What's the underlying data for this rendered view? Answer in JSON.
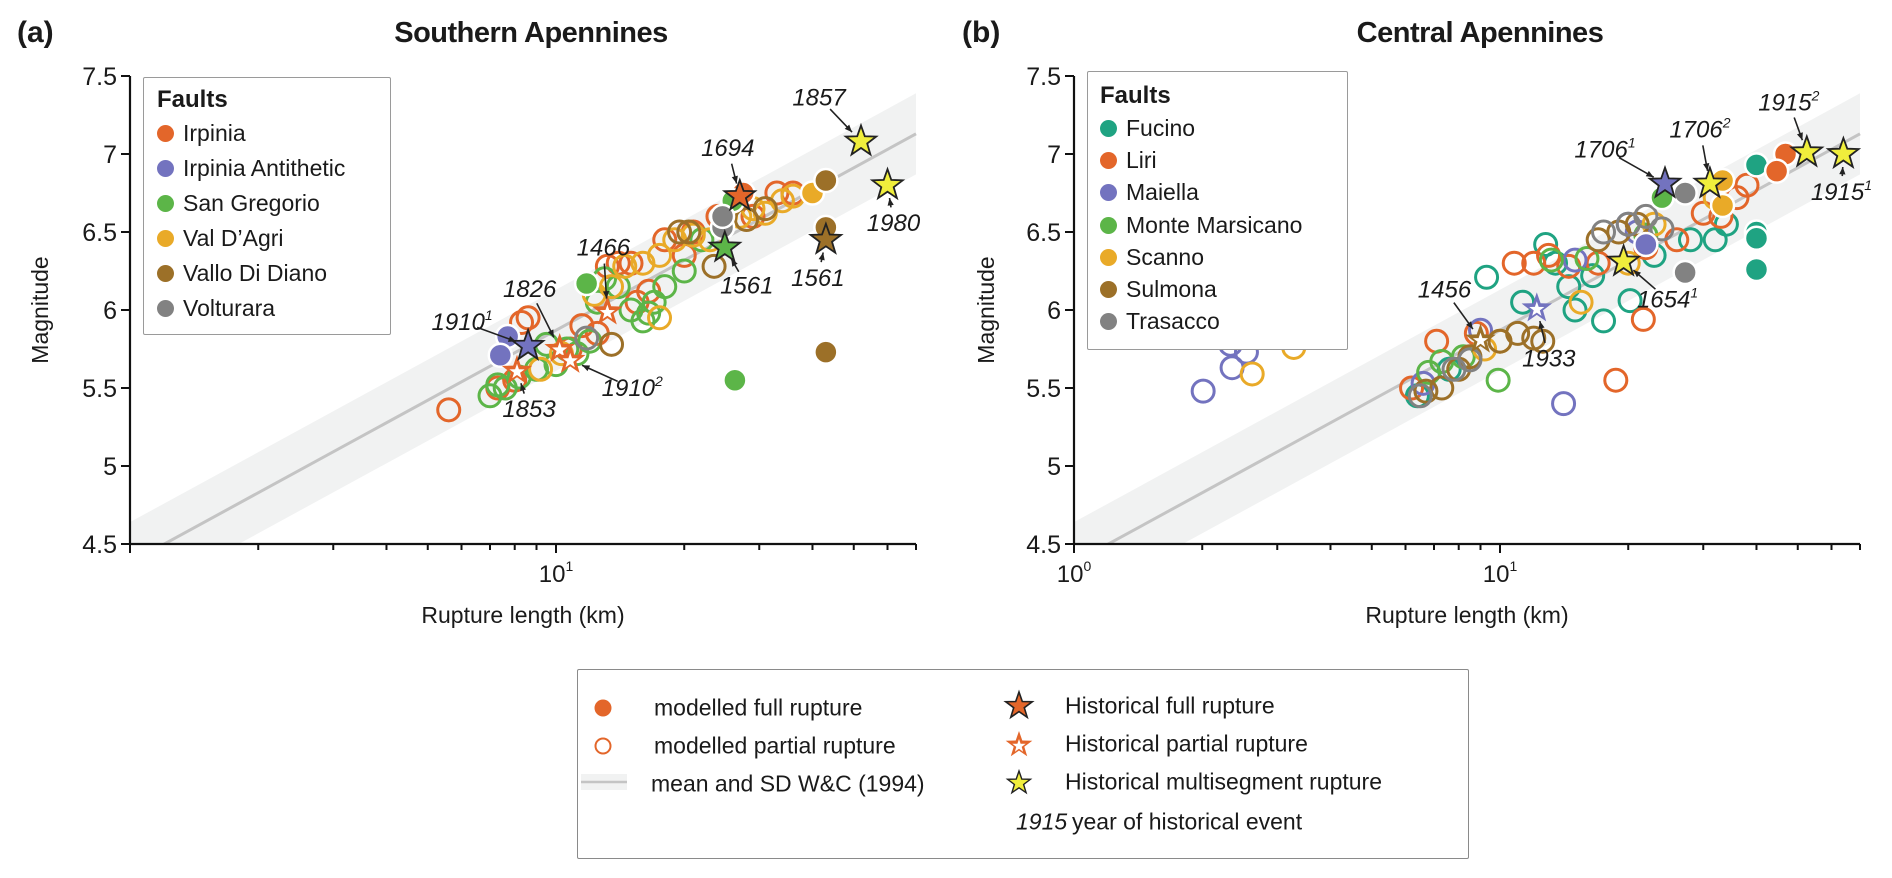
{
  "chart_data": [
    {
      "panel": "(a)",
      "type": "scatter",
      "title": "Southern Apennines",
      "xlabel": "Rupture length (km)",
      "ylabel": "Magnitude",
      "xscale": "log",
      "xlim": [
        1,
        70
      ],
      "ylim": [
        4.5,
        7.5
      ],
      "yticks": [
        "4.5",
        "5",
        "5.5",
        "6",
        "6.5",
        "7",
        "7.5"
      ],
      "xtick_labels": [
        {
          "base": "10",
          "exp": "1",
          "value": 10
        }
      ],
      "legend_title": "Faults",
      "legend_placement": "top-left",
      "reference": {
        "intercept": 4.38,
        "slope": 1.49,
        "sd": 0.26
      },
      "series": [
        {
          "name": "Irpinia",
          "color": "#e3662a",
          "partial": [
            [
              5.6,
              5.36
            ],
            [
              8.3,
              5.92
            ],
            [
              8.6,
              5.95
            ],
            [
              7.3,
              5.5
            ],
            [
              8.0,
              5.55
            ],
            [
              10.8,
              5.75
            ],
            [
              11.5,
              5.9
            ],
            [
              12.5,
              5.85
            ],
            [
              13.2,
              6.28
            ],
            [
              14,
              6.3
            ],
            [
              15,
              6.3
            ],
            [
              15.5,
              6.05
            ],
            [
              16.5,
              6.12
            ],
            [
              18,
              6.45
            ],
            [
              20,
              6.35
            ],
            [
              21,
              6.5
            ],
            [
              24,
              6.6
            ],
            [
              29,
              6.6
            ],
            [
              33,
              6.75
            ],
            [
              36,
              6.75
            ]
          ],
          "full": [
            [
              27.5,
              6.75
            ]
          ]
        },
        {
          "name": "Irpinia Antithetic",
          "color": "#7373bf",
          "partial": [],
          "full": [
            [
              7.7,
              5.83
            ],
            [
              7.4,
              5.71
            ]
          ]
        },
        {
          "name": "San Gregorio",
          "color": "#5cb548",
          "partial": [
            [
              7.0,
              5.45
            ],
            [
              7.3,
              5.52
            ],
            [
              7.6,
              5.5
            ],
            [
              8.2,
              5.57
            ],
            [
              9,
              5.62
            ],
            [
              9.5,
              5.78
            ],
            [
              10,
              5.65
            ],
            [
              10.6,
              5.75
            ],
            [
              11.2,
              5.72
            ],
            [
              12,
              5.8
            ],
            [
              12.5,
              6.05
            ],
            [
              13,
              6.2
            ],
            [
              14,
              6.15
            ],
            [
              15,
              6.0
            ],
            [
              16,
              5.93
            ],
            [
              16.5,
              5.98
            ],
            [
              17,
              6.05
            ],
            [
              18,
              6.15
            ],
            [
              20,
              6.25
            ],
            [
              22,
              6.45
            ]
          ],
          "full": [
            [
              11.8,
              6.17
            ],
            [
              26,
              6.7
            ],
            [
              26.3,
              5.55
            ]
          ]
        },
        {
          "name": "Val D’Agri",
          "color": "#e9aa28",
          "partial": [
            [
              9.2,
              5.62
            ],
            [
              10.3,
              5.72
            ],
            [
              12.3,
              6.1
            ],
            [
              13.5,
              6.15
            ],
            [
              14.5,
              6.28
            ],
            [
              16,
              6.3
            ],
            [
              17.5,
              6.35
            ],
            [
              17.5,
              5.95
            ],
            [
              19,
              6.45
            ],
            [
              21,
              6.48
            ],
            [
              23,
              6.45
            ],
            [
              25,
              6.6
            ],
            [
              27,
              6.6
            ],
            [
              29,
              6.65
            ],
            [
              31,
              6.62
            ],
            [
              34,
              6.7
            ],
            [
              36,
              6.73
            ]
          ],
          "full": [
            [
              40,
              6.75
            ]
          ]
        },
        {
          "name": "Vallo Di Diano",
          "color": "#9c7028",
          "partial": [
            [
              13.5,
              5.78
            ],
            [
              19.5,
              6.5
            ],
            [
              20.5,
              6.5
            ],
            [
              23.5,
              6.28
            ],
            [
              28,
              6.58
            ],
            [
              31,
              6.65
            ]
          ],
          "full": [
            [
              43,
              6.83
            ],
            [
              43,
              6.53
            ],
            [
              43,
              5.73
            ]
          ]
        },
        {
          "name": "Volturara",
          "color": "#828282",
          "partial": [
            [
              11.8,
              5.82
            ]
          ],
          "full": [
            [
              24.6,
              6.53
            ],
            [
              24.6,
              6.6
            ]
          ]
        }
      ],
      "historical": [
        {
          "year": "1694",
          "sup": "",
          "kind": "full",
          "fault": "Irpinia",
          "x": 27,
          "y": 6.73
        },
        {
          "year": "1561",
          "sup": "",
          "kind": "full",
          "fault": "San Gregorio",
          "x": 24.9,
          "y": 6.4
        },
        {
          "year": "1561",
          "sup": "",
          "kind": "full",
          "fault": "Vallo Di Diano",
          "x": 43,
          "y": 6.45
        },
        {
          "year": "1857",
          "sup": "",
          "kind": "multisegment",
          "fault": "",
          "x": 52,
          "y": 7.08
        },
        {
          "year": "1980",
          "sup": "",
          "kind": "multisegment",
          "fault": "",
          "x": 60,
          "y": 6.8
        },
        {
          "year": "1466",
          "sup": "",
          "kind": "partial",
          "fault": "Irpinia",
          "x": 13.2,
          "y": 5.99
        },
        {
          "year": "1826",
          "sup": "",
          "kind": "partial",
          "fault": "Irpinia",
          "x": 10.2,
          "y": 5.75
        },
        {
          "year": "1853",
          "sup": "",
          "kind": "partial",
          "fault": "Irpinia",
          "x": 8.1,
          "y": 5.61
        },
        {
          "year": "1910",
          "sup": "1",
          "kind": "full",
          "fault": "Irpinia Antithetic",
          "x": 8.6,
          "y": 5.77
        },
        {
          "year": "1910",
          "sup": "2",
          "kind": "partial",
          "fault": "Irpinia",
          "x": 10.8,
          "y": 5.68
        }
      ]
    },
    {
      "panel": "(b)",
      "type": "scatter",
      "title": "Central Apennines",
      "xlabel": "Rupture length (km)",
      "ylabel": "Magnitude",
      "xscale": "log",
      "xlim": [
        1,
        70
      ],
      "ylim": [
        4.5,
        7.5
      ],
      "yticks": [
        "4.5",
        "5",
        "5.5",
        "6",
        "6.5",
        "7",
        "7.5"
      ],
      "xtick_labels": [
        {
          "base": "10",
          "exp": "0",
          "value": 1
        },
        {
          "base": "10",
          "exp": "1",
          "value": 10
        }
      ],
      "legend_title": "Faults",
      "legend_placement": "top-left",
      "reference": {
        "intercept": 4.38,
        "slope": 1.49,
        "sd": 0.26
      },
      "series": [
        {
          "name": "Fucino",
          "color": "#1fa382",
          "partial": [
            [
              6.4,
              5.45
            ],
            [
              7.6,
              5.62
            ],
            [
              9.3,
              6.21
            ],
            [
              11.3,
              6.05
            ],
            [
              12.8,
              6.42
            ],
            [
              13.5,
              6.3
            ],
            [
              14.5,
              6.15
            ],
            [
              15,
              6.0
            ],
            [
              16.5,
              6.22
            ],
            [
              17.5,
              5.93
            ],
            [
              20.2,
              6.06
            ],
            [
              23,
              6.35
            ],
            [
              28,
              6.45
            ],
            [
              32,
              6.45
            ],
            [
              34,
              6.55
            ]
          ],
          "full": [
            [
              40,
              6.93
            ],
            [
              40,
              6.5
            ],
            [
              40,
              6.46
            ],
            [
              40,
              6.26
            ]
          ]
        },
        {
          "name": "Liri",
          "color": "#e3662a",
          "partial": [
            [
              6.2,
              5.5
            ],
            [
              7.1,
              5.8
            ],
            [
              8.8,
              5.85
            ],
            [
              10.8,
              6.3
            ],
            [
              12,
              6.3
            ],
            [
              13,
              6.35
            ],
            [
              14.5,
              6.28
            ],
            [
              17,
              6.3
            ],
            [
              18.7,
              5.55
            ],
            [
              21.7,
              5.94
            ],
            [
              22,
              6.4
            ],
            [
              26,
              6.45
            ],
            [
              30,
              6.62
            ],
            [
              33,
              6.6
            ],
            [
              36,
              6.72
            ],
            [
              38,
              6.8
            ]
          ],
          "full": [
            [
              46.8,
              7.0
            ],
            [
              44.6,
              6.89
            ]
          ]
        },
        {
          "name": "Maiella",
          "color": "#7373bf",
          "partial": [
            [
              2.01,
              5.48
            ],
            [
              2.33,
              5.78
            ],
            [
              2.35,
              5.63
            ],
            [
              2.54,
              5.73
            ],
            [
              6.6,
              5.53
            ],
            [
              9.0,
              5.87
            ],
            [
              14.1,
              5.4
            ],
            [
              15,
              6.32
            ],
            [
              20,
              6.55
            ],
            [
              21,
              6.5
            ]
          ],
          "full": [
            [
              22,
              6.42
            ]
          ]
        },
        {
          "name": "Monte Marsicano",
          "color": "#5cb548",
          "partial": [
            [
              6.8,
              5.6
            ],
            [
              7.3,
              5.67
            ],
            [
              8.2,
              5.7
            ],
            [
              9.9,
              5.55
            ],
            [
              13.2,
              6.32
            ],
            [
              16,
              6.33
            ],
            [
              22,
              6.48
            ]
          ],
          "full": [
            [
              24,
              6.72
            ]
          ]
        },
        {
          "name": "Scanno",
          "color": "#e9aa28",
          "partial": [
            [
              2.62,
              5.59
            ],
            [
              3.28,
              5.76
            ],
            [
              9.2,
              5.75
            ],
            [
              10,
              5.8
            ],
            [
              15.5,
              6.05
            ],
            [
              20,
              6.3
            ],
            [
              23,
              6.55
            ],
            [
              32,
              6.72
            ]
          ],
          "full": [
            [
              33.3,
              6.83
            ],
            [
              33.3,
              6.67
            ]
          ]
        },
        {
          "name": "Sulmona",
          "color": "#9c7028",
          "partial": [
            [
              6.7,
              5.48
            ],
            [
              7.3,
              5.5
            ],
            [
              8.0,
              5.62
            ],
            [
              8.5,
              5.7
            ],
            [
              10,
              5.8
            ],
            [
              11,
              5.85
            ],
            [
              12,
              5.82
            ],
            [
              12.6,
              5.8
            ],
            [
              17,
              6.45
            ],
            [
              19,
              6.5
            ],
            [
              21,
              6.55
            ]
          ],
          "full": []
        },
        {
          "name": "Trasacco",
          "color": "#828282",
          "partial": [
            [
              6.5,
              5.45
            ],
            [
              7.8,
              5.62
            ],
            [
              8.5,
              5.68
            ],
            [
              17.5,
              6.5
            ],
            [
              20,
              6.55
            ],
            [
              22,
              6.6
            ],
            [
              24,
              6.52
            ]
          ],
          "full": [
            [
              27.2,
              6.75
            ],
            [
              27.2,
              6.24
            ]
          ]
        }
      ],
      "historical": [
        {
          "year": "1706",
          "sup": "1",
          "kind": "full",
          "fault": "Maiella",
          "x": 24.4,
          "y": 6.81
        },
        {
          "year": "1706",
          "sup": "2",
          "kind": "multisegment",
          "fault": "",
          "x": 31.1,
          "y": 6.81
        },
        {
          "year": "1915",
          "sup": "2",
          "kind": "multisegment",
          "fault": "",
          "x": 52.5,
          "y": 7.01
        },
        {
          "year": "1915",
          "sup": "1",
          "kind": "multisegment",
          "fault": "",
          "x": 64,
          "y": 7.0
        },
        {
          "year": "1654",
          "sup": "1",
          "kind": "multisegment",
          "fault": "",
          "x": 19.5,
          "y": 6.31
        },
        {
          "year": "1456",
          "sup": "",
          "kind": "partial",
          "fault": "Sulmona",
          "x": 9.0,
          "y": 5.81
        },
        {
          "year": "1933",
          "sup": "",
          "kind": "partial",
          "fault": "Maiella",
          "x": 12.2,
          "y": 6.01
        }
      ]
    }
  ],
  "colors": {
    "reference_line": "#c4c4c4",
    "reference_band": "#f1f2f2",
    "multisegment_star": "#f0ee3c",
    "legend_orange": "#e3662a"
  },
  "bottom_legend": {
    "modelled_full": "modelled full rupture",
    "modelled_partial": "modelled partial rupture",
    "reference": "mean and SD W&C (1994)",
    "historical_full": "Historical full rupture",
    "historical_partial": "Historical partial rupture",
    "historical_multi": "Historical multisegment rupture",
    "year_example": "1915",
    "year_text": "year of historical event"
  }
}
